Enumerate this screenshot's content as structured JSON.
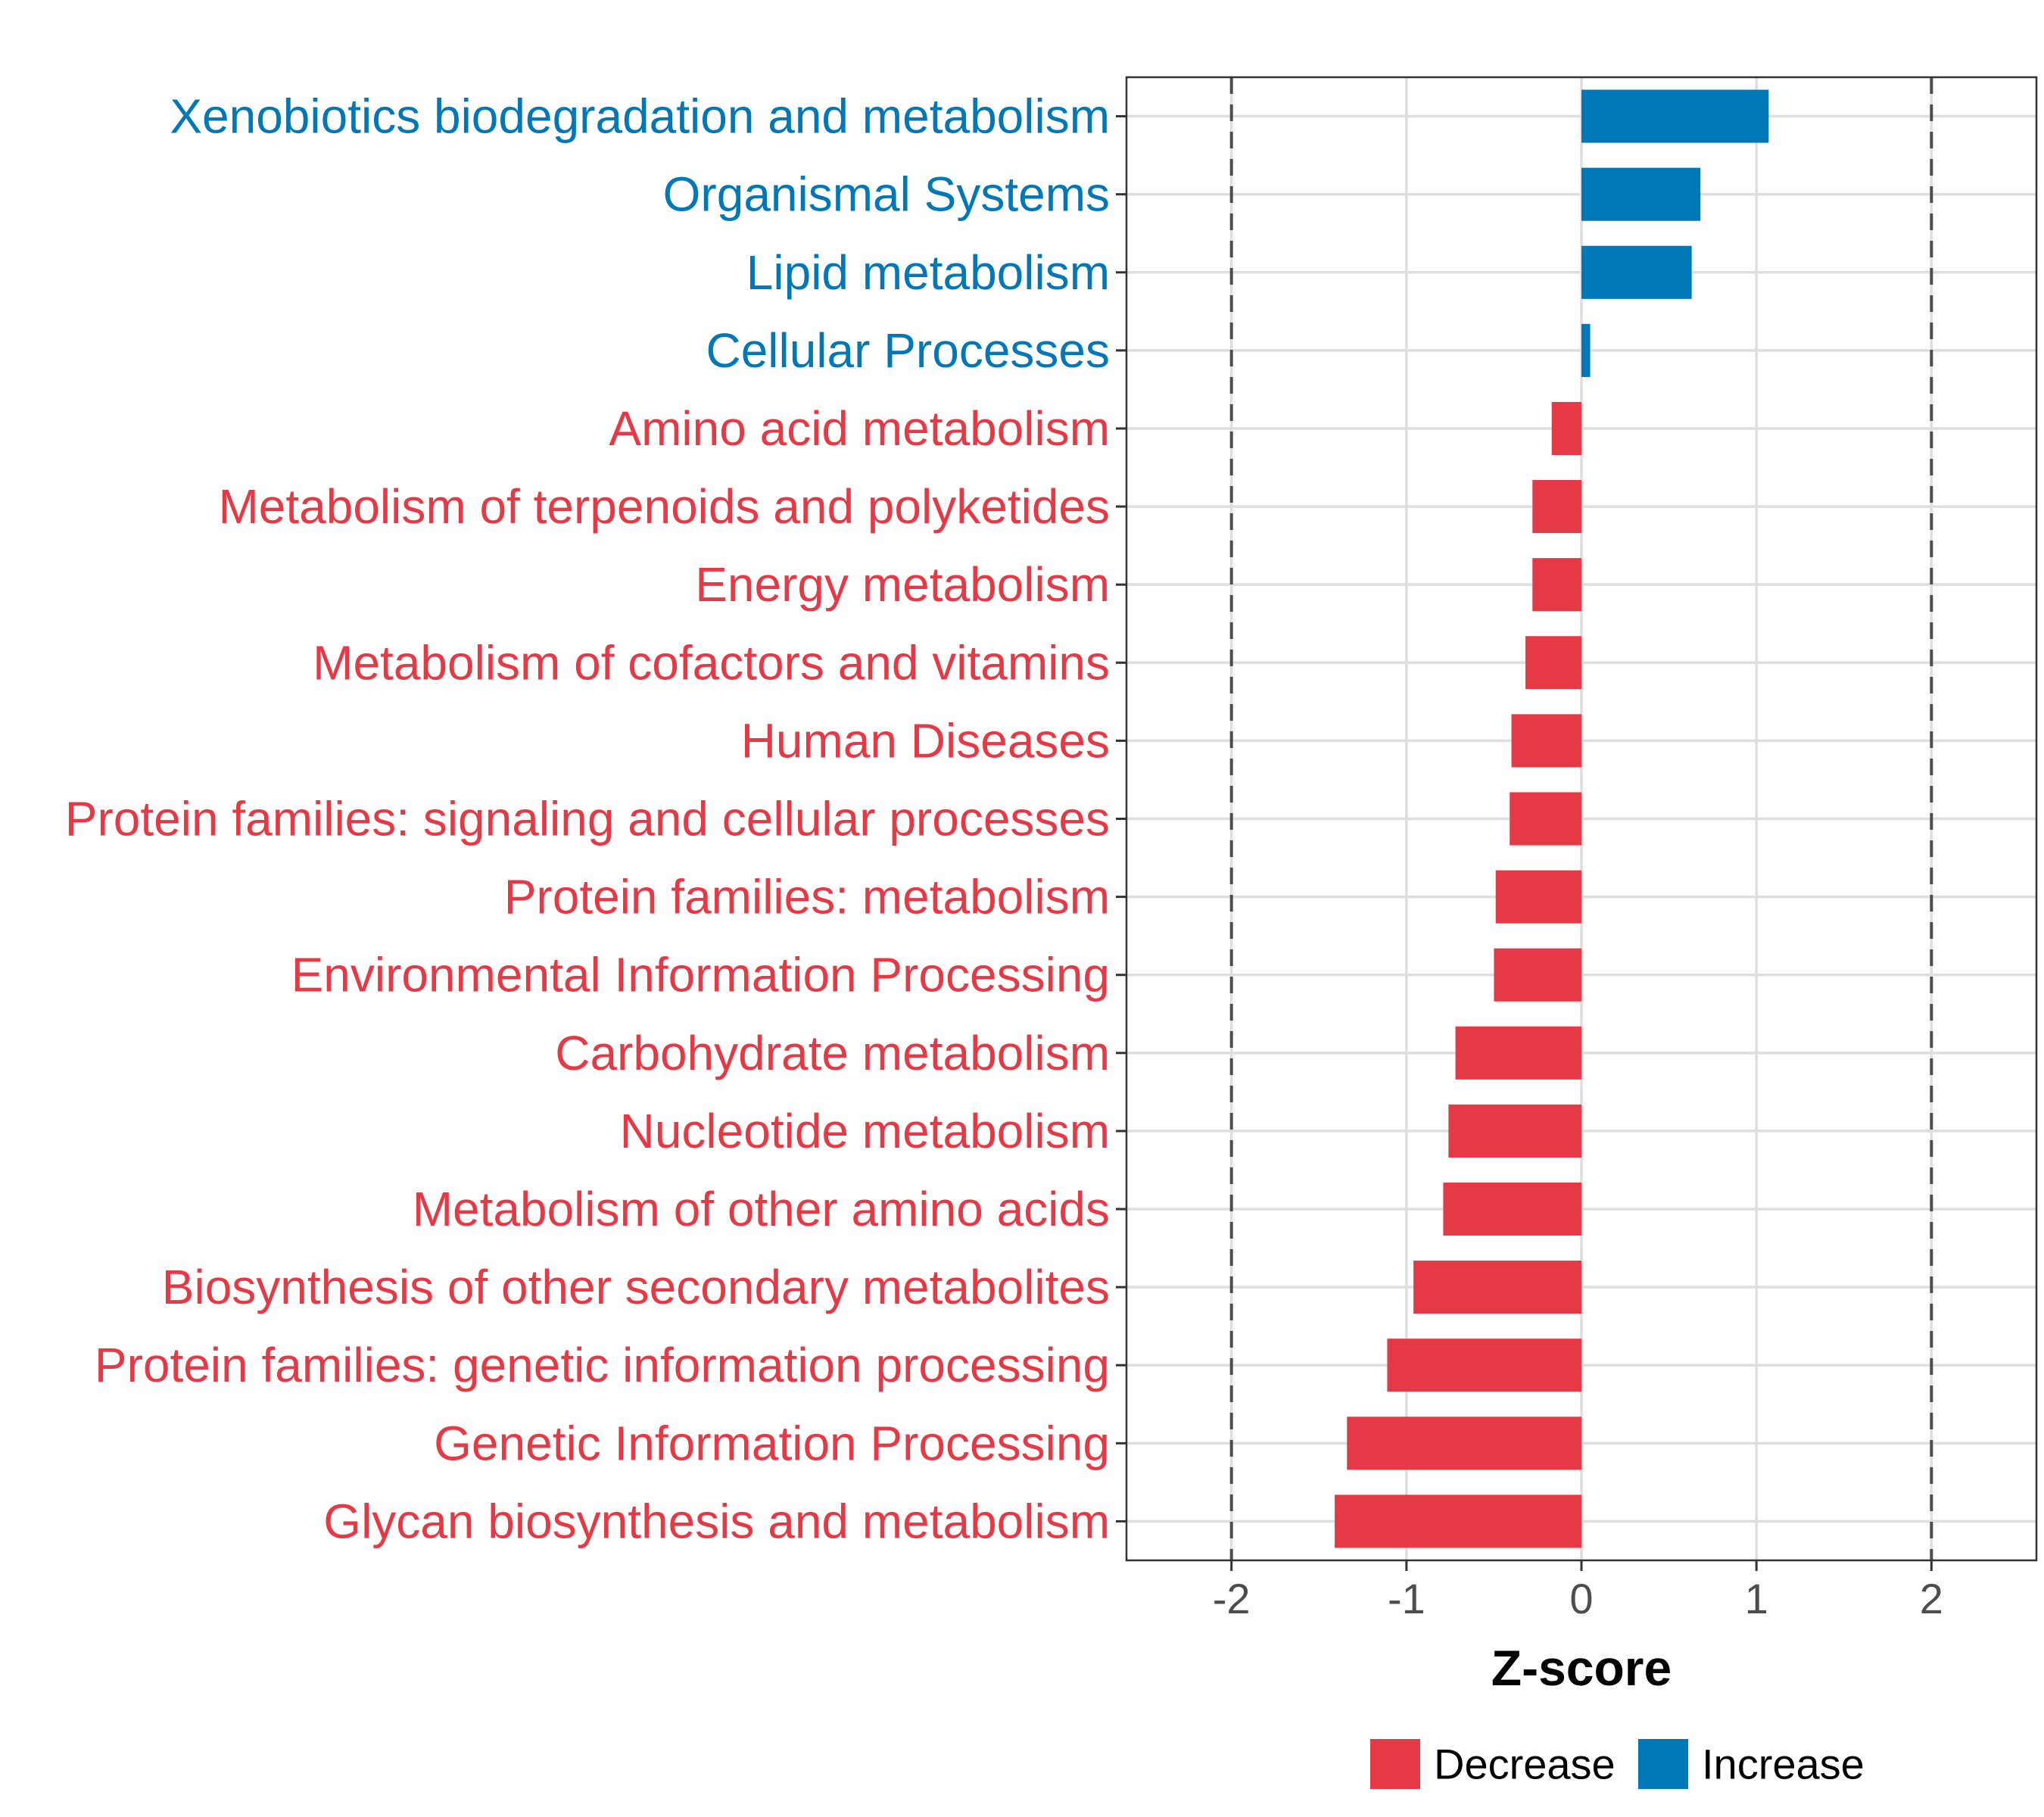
{
  "chart_data": {
    "type": "bar",
    "orientation": "horizontal",
    "xlabel": "Z-score",
    "xlim": [
      -2.6,
      2.6
    ],
    "xticks": [
      -2,
      -1,
      0,
      1,
      2
    ],
    "xtick_labels": [
      "-2",
      "-1",
      "0",
      "1",
      "2"
    ],
    "reference_lines": [
      -2,
      2
    ],
    "grid": true,
    "categories": [
      "Xenobiotics biodegradation and metabolism",
      "Organismal Systems",
      "Lipid metabolism",
      "Cellular Processes",
      "Amino acid metabolism",
      "Metabolism of terpenoids and polyketides",
      "Energy metabolism",
      "Metabolism of cofactors and vitamins",
      "Human Diseases",
      "Protein families: signaling and cellular processes",
      "Protein families: metabolism",
      "Environmental Information Processing",
      "Carbohydrate metabolism",
      "Nucleotide metabolism",
      "Metabolism of other amino acids",
      "Biosynthesis of other secondary metabolites",
      "Protein families: genetic information processing",
      "Genetic Information Processing",
      "Glycan biosynthesis and metabolism"
    ],
    "values": [
      1.07,
      0.68,
      0.63,
      0.05,
      -0.17,
      -0.28,
      -0.28,
      -0.32,
      -0.4,
      -0.41,
      -0.49,
      -0.5,
      -0.72,
      -0.76,
      -0.79,
      -0.96,
      -1.11,
      -1.34,
      -1.41
    ],
    "groups": [
      "Increase",
      "Increase",
      "Increase",
      "Increase",
      "Decrease",
      "Decrease",
      "Decrease",
      "Decrease",
      "Decrease",
      "Decrease",
      "Decrease",
      "Decrease",
      "Decrease",
      "Decrease",
      "Decrease",
      "Decrease",
      "Decrease",
      "Decrease",
      "Decrease"
    ],
    "legend": [
      {
        "name": "Decrease",
        "color": "#E63946"
      },
      {
        "name": "Increase",
        "color": "#0077B6"
      }
    ],
    "legend_position": "bottom"
  }
}
